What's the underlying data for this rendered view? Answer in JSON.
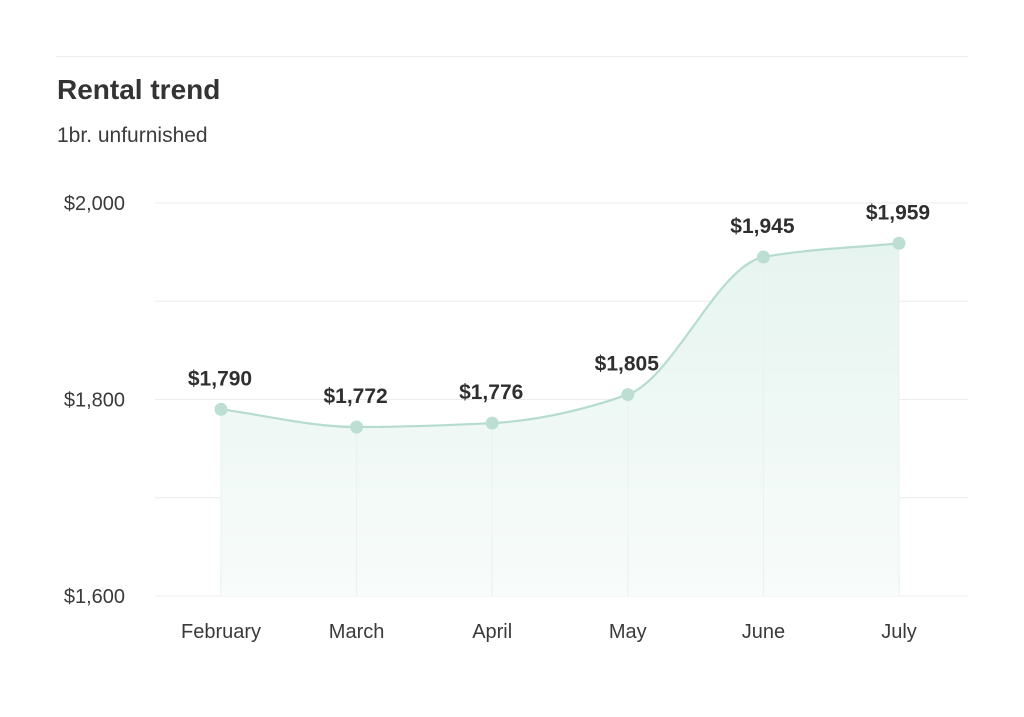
{
  "header": {
    "title": "Rental trend",
    "subtitle": "1br. unfurnished"
  },
  "chart_data": {
    "type": "area",
    "title": "Rental trend",
    "subtitle": "1br. unfurnished",
    "categories": [
      "February",
      "March",
      "April",
      "May",
      "June",
      "July"
    ],
    "series": [
      {
        "values": [
          1790,
          1772,
          1776,
          1805,
          1945,
          1959
        ],
        "data_labels": [
          "$1,790",
          "$1,772",
          "$1,776",
          "$1,805",
          "$1,945",
          "$1,959"
        ]
      }
    ],
    "ylim": [
      1600,
      2000
    ],
    "yticks": [
      1600,
      1800,
      2000
    ],
    "ytick_labels": [
      "$1,600",
      "$1,800",
      "$2,000"
    ],
    "grid": true,
    "colors": {
      "line": "#b5dccf",
      "marker": "#bddfd3",
      "fill_top": "#e6f4ef",
      "fill_bottom": "#f8fcfb",
      "grid": "#ececec"
    }
  }
}
